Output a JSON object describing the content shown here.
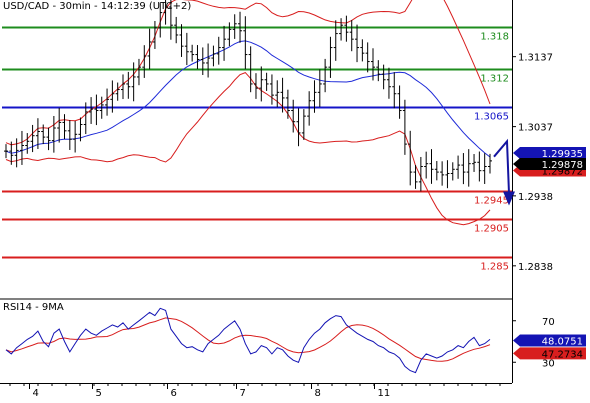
{
  "chart_data": [
    {
      "type": "line",
      "title": "USD/CAD - 30min - 14:12:39 (UTC+2)",
      "x_tick_labels": [
        "4",
        "5",
        "6",
        "7",
        "8",
        "11"
      ],
      "y_tick_labels": [
        "1.3137",
        "1.3037",
        "1.2938",
        "1.2838"
      ],
      "y_ticks": [
        1.3137,
        1.3037,
        1.2938,
        1.2838
      ],
      "ylim": [
        1.2792,
        1.3218
      ],
      "grid": false,
      "series": [
        {
          "name": "",
          "style": "ohlc-bars",
          "color": "#000000",
          "values": [
            1.3002,
            1.2996,
            1.3003,
            1.301,
            1.3016,
            1.3024,
            1.303,
            1.3022,
            1.3017,
            1.3035,
            1.3043,
            1.3031,
            1.3019,
            1.3026,
            1.304,
            1.3058,
            1.3062,
            1.306,
            1.3068,
            1.3076,
            1.3084,
            1.309,
            1.3098,
            1.3094,
            1.3108,
            1.3122,
            1.3138,
            1.3158,
            1.3178,
            1.32,
            1.3208,
            1.3182,
            1.3168,
            1.3152,
            1.3144,
            1.314,
            1.3133,
            1.3128,
            1.3135,
            1.3141,
            1.315,
            1.3162,
            1.3176,
            1.3184,
            1.3174,
            1.314,
            1.3098,
            1.3092,
            1.3104,
            1.3098,
            1.3082,
            1.3086,
            1.3078,
            1.306,
            1.3044,
            1.3028,
            1.3052,
            1.3074,
            1.3086,
            1.3098,
            1.3122,
            1.315,
            1.317,
            1.3182,
            1.3172,
            1.3162,
            1.315,
            1.3142,
            1.313,
            1.3122,
            1.3112,
            1.3104,
            1.3094,
            1.3084,
            1.306,
            1.3012,
            1.2972,
            1.2958,
            1.298,
            1.2984,
            1.2976,
            1.2972,
            1.2968,
            1.297,
            1.2976,
            1.2982,
            1.2972,
            1.2984,
            1.2986,
            1.2974,
            1.298,
            1.2988
          ]
        },
        {
          "name": "",
          "style": "moving-average",
          "color": "#1f2bd8"
        },
        {
          "name": "",
          "style": "bollinger-upper",
          "color": "#d81e1e"
        },
        {
          "name": "",
          "style": "bollinger-lower",
          "color": "#d81e1e"
        }
      ],
      "levels": [
        {
          "label": "1.318",
          "value": 1.318,
          "color": "#1e8c1e"
        },
        {
          "label": "1.312",
          "value": 1.312,
          "color": "#1e8c1e"
        },
        {
          "label": "1.3065",
          "value": 1.3065,
          "color": "#1414c8"
        },
        {
          "label": "1.2945",
          "value": 1.2945,
          "color": "#d81e1e"
        },
        {
          "label": "1.2905",
          "value": 1.2905,
          "color": "#d81e1e"
        },
        {
          "label": "1.285",
          "value": 1.285,
          "color": "#d81e1e"
        }
      ],
      "price_badges": [
        {
          "label": "1.29935",
          "value": 1.29935,
          "bg": "#1414b4",
          "fg": "#ffffff"
        },
        {
          "label": "1.29878",
          "value": 1.29878,
          "bg": "#000000",
          "fg": "#ffffff"
        },
        {
          "label": "1.29872",
          "value": 1.29872,
          "bg": "#d81e1e",
          "fg": "#000000"
        }
      ],
      "arrow": {
        "color": "#1414a0",
        "from_value": 1.2994,
        "peak_value": 1.3016,
        "to_value": 1.293
      }
    },
    {
      "type": "line",
      "title": "RSI14 - 9MA",
      "y_tick_labels": [
        "70",
        "30"
      ],
      "y_ticks": [
        70,
        30
      ],
      "ylim": [
        10,
        90
      ],
      "grid": false,
      "series": [
        {
          "name": "RSI14",
          "color": "#1414b4",
          "values": [
            42,
            38,
            44,
            48,
            52,
            55,
            60,
            50,
            45,
            58,
            62,
            50,
            40,
            48,
            56,
            62,
            58,
            56,
            60,
            63,
            66,
            64,
            68,
            62,
            66,
            70,
            74,
            78,
            75,
            82,
            80,
            62,
            55,
            48,
            44,
            45,
            42,
            40,
            48,
            52,
            56,
            62,
            66,
            70,
            62,
            48,
            38,
            40,
            46,
            44,
            38,
            44,
            42,
            36,
            32,
            30,
            44,
            52,
            58,
            62,
            68,
            72,
            75,
            74,
            66,
            62,
            58,
            55,
            52,
            50,
            46,
            44,
            40,
            38,
            34,
            26,
            22,
            20,
            32,
            38,
            36,
            34,
            36,
            40,
            42,
            46,
            44,
            50,
            54,
            46,
            48,
            52
          ]
        },
        {
          "name": "9MA",
          "color": "#d81e1e"
        }
      ],
      "badges": [
        {
          "label": "48.0751",
          "value": 48.0751,
          "bg": "#1414b4",
          "fg": "#ffffff"
        },
        {
          "label": "47.2734",
          "value": 47.2734,
          "bg": "#d81e1e",
          "fg": "#000000"
        }
      ]
    }
  ]
}
